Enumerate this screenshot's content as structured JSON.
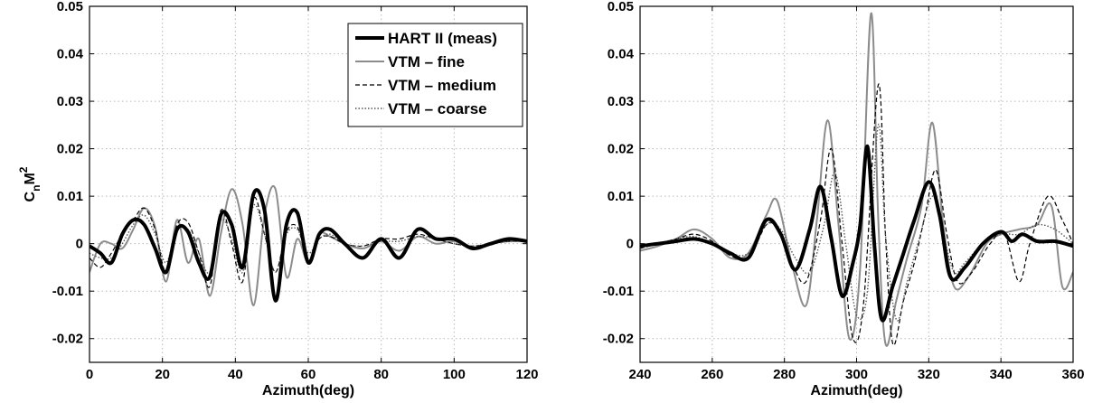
{
  "chart_data": [
    {
      "type": "line",
      "title": "",
      "xlabel": "Azimuth(deg)",
      "ylabel": "C_n M^2",
      "xlim": [
        0,
        120
      ],
      "ylim": [
        -0.025,
        0.05
      ],
      "xticks": [
        0,
        20,
        40,
        60,
        80,
        100,
        120
      ],
      "xtick_labels": [
        "0",
        "20",
        "40",
        "60",
        "80",
        "100",
        "120"
      ],
      "yticks": [
        -0.02,
        -0.01,
        0,
        0.01,
        0.02,
        0.03,
        0.04,
        0.05
      ],
      "ytick_labels": [
        "-0.02",
        "-0.01",
        "0",
        "0.01",
        "0.02",
        "0.03",
        "0.04",
        "0.05"
      ],
      "grid": true,
      "legend": {
        "position": "top-right",
        "entries": [
          "HART II (meas)",
          "VTM – fine",
          "VTM – medium",
          "VTM – coarse"
        ]
      },
      "series": [
        {
          "name": "HART II (meas)",
          "color": "#000000",
          "style": "solid-thick",
          "x": [
            0,
            3,
            6,
            9,
            12,
            15,
            18,
            21,
            24,
            27,
            30,
            33,
            36,
            39,
            42,
            45,
            48,
            51,
            54,
            57,
            60,
            63,
            66,
            70,
            75,
            80,
            85,
            90,
            95,
            100,
            105,
            110,
            115,
            120
          ],
          "y": [
            -0.0005,
            -0.002,
            -0.004,
            0.002,
            0.005,
            0.004,
            -0.001,
            -0.006,
            0.003,
            0.0025,
            -0.004,
            -0.007,
            0.006,
            0.004,
            -0.005,
            0.0105,
            0.007,
            -0.012,
            0.004,
            0.0065,
            -0.004,
            0.002,
            0.003,
            0.0,
            -0.003,
            0.001,
            -0.003,
            0.003,
            0.001,
            0.001,
            -0.001,
            0.0,
            0.001,
            0.0005
          ]
        },
        {
          "name": "VTM – fine",
          "color": "#8c8c8c",
          "style": "solid",
          "x": [
            0,
            3,
            6,
            9,
            12,
            15,
            18,
            21,
            24,
            27,
            30,
            33,
            36,
            39,
            42,
            45,
            48,
            51,
            54,
            57,
            60,
            63,
            66,
            70,
            75,
            80,
            85,
            90,
            95,
            100,
            105,
            110,
            115,
            120
          ],
          "y": [
            -0.006,
            0.0,
            0.0,
            -0.001,
            0.003,
            0.0075,
            0.0035,
            -0.008,
            0.005,
            -0.004,
            0.001,
            -0.011,
            0.002,
            0.0115,
            0.004,
            -0.013,
            0.006,
            0.0115,
            -0.007,
            0.001,
            -0.004,
            0.002,
            0.0015,
            0.0,
            -0.001,
            0.0005,
            -0.0015,
            0.0015,
            0.0,
            0.0005,
            -0.001,
            0.0,
            0.0005,
            0.0005
          ]
        },
        {
          "name": "VTM – medium",
          "color": "#000000",
          "style": "dashed",
          "x": [
            0,
            3,
            6,
            9,
            12,
            15,
            18,
            21,
            24,
            27,
            30,
            33,
            36,
            39,
            42,
            45,
            48,
            51,
            54,
            57,
            60,
            63,
            66,
            70,
            75,
            80,
            85,
            90,
            95,
            100,
            105,
            110,
            115,
            120
          ],
          "y": [
            -0.003,
            -0.005,
            -0.002,
            0.002,
            0.005,
            0.0075,
            0.003,
            -0.006,
            0.004,
            0.0045,
            -0.002,
            -0.009,
            0.007,
            0.0,
            -0.008,
            0.0095,
            0.002,
            -0.006,
            0.0025,
            0.0035,
            -0.0035,
            0.001,
            0.0015,
            0.0,
            -0.0005,
            0.001,
            0.001,
            0.002,
            0.001,
            0.0,
            -0.0005,
            0.0,
            0.0005,
            0.0005
          ]
        },
        {
          "name": "VTM – coarse",
          "color": "#555555",
          "style": "dotted",
          "x": [
            0,
            3,
            6,
            9,
            12,
            15,
            18,
            21,
            24,
            27,
            30,
            33,
            36,
            39,
            42,
            45,
            48,
            51,
            54,
            57,
            60,
            63,
            66,
            70,
            75,
            80,
            85,
            90,
            95,
            100,
            105,
            110,
            115,
            120
          ],
          "y": [
            -0.002,
            -0.003,
            -0.003,
            0.0,
            0.004,
            0.006,
            0.002,
            -0.004,
            0.003,
            0.003,
            -0.002,
            -0.006,
            0.005,
            0.001,
            -0.006,
            0.008,
            0.002,
            -0.006,
            0.002,
            0.003,
            -0.002,
            0.001,
            0.002,
            0.0,
            -0.0005,
            0.0005,
            0.0005,
            0.0015,
            0.001,
            0.0,
            -0.0005,
            0.0,
            0.0005,
            0.0005
          ]
        }
      ]
    },
    {
      "type": "line",
      "title": "",
      "xlabel": "Azimuth(deg)",
      "ylabel": "",
      "xlim": [
        240,
        360
      ],
      "ylim": [
        -0.025,
        0.05
      ],
      "xticks": [
        240,
        260,
        280,
        300,
        320,
        340,
        360
      ],
      "xtick_labels": [
        "240",
        "260",
        "280",
        "300",
        "320",
        "340",
        "360"
      ],
      "yticks": [
        -0.02,
        -0.01,
        0,
        0.01,
        0.02,
        0.03,
        0.04,
        0.05
      ],
      "ytick_labels": [
        "-0.02",
        "-0.01",
        "0",
        "0.01",
        "0.02",
        "0.03",
        "0.04",
        "0.05"
      ],
      "grid": true,
      "series": [
        {
          "name": "HART II (meas)",
          "color": "#000000",
          "style": "solid-thick",
          "x": [
            240,
            245,
            250,
            255,
            260,
            265,
            270,
            275,
            279,
            283,
            287,
            290,
            293,
            296,
            299,
            301,
            303,
            305,
            307,
            310,
            313,
            316,
            320,
            323,
            326,
            330,
            335,
            340,
            343,
            346,
            350,
            355,
            360
          ],
          "y": [
            -0.0005,
            0.0,
            0.0005,
            0.001,
            0.0,
            -0.002,
            -0.003,
            0.005,
            0.002,
            -0.0055,
            0.003,
            0.012,
            0.001,
            -0.011,
            -0.004,
            0.004,
            0.0205,
            -0.001,
            -0.016,
            -0.009,
            -0.002,
            0.005,
            0.013,
            0.006,
            -0.007,
            -0.005,
            0.0,
            0.0025,
            0.0005,
            0.002,
            0.0005,
            0.0005,
            -0.0005
          ]
        },
        {
          "name": "VTM – fine",
          "color": "#8c8c8c",
          "style": "solid",
          "x": [
            240,
            245,
            250,
            255,
            260,
            265,
            270,
            275,
            278,
            282,
            286,
            289,
            292,
            295,
            298,
            301,
            304,
            306,
            308,
            311,
            314,
            318,
            321,
            324,
            327,
            331,
            336,
            340,
            345,
            350,
            354,
            357,
            360
          ],
          "y": [
            -0.0015,
            -0.0005,
            0.001,
            0.003,
            0.001,
            -0.003,
            -0.002,
            0.006,
            0.009,
            -0.004,
            -0.013,
            0.005,
            0.026,
            0.004,
            -0.02,
            -0.005,
            0.0485,
            0.005,
            -0.021,
            -0.012,
            -0.003,
            0.008,
            0.0255,
            0.004,
            -0.009,
            -0.007,
            0.0,
            0.002,
            0.003,
            0.004,
            0.008,
            -0.009,
            -0.006
          ]
        },
        {
          "name": "VTM – medium",
          "color": "#000000",
          "style": "dashed",
          "x": [
            240,
            245,
            250,
            255,
            260,
            265,
            270,
            275,
            278,
            282,
            286,
            290,
            293,
            296,
            299,
            302,
            306,
            308,
            310,
            313,
            316,
            319,
            322,
            325,
            328,
            332,
            337,
            341,
            345,
            348,
            353,
            357,
            360
          ],
          "y": [
            -0.001,
            0.0,
            0.001,
            0.002,
            0.0005,
            -0.0025,
            -0.003,
            0.004,
            0.003,
            -0.004,
            -0.008,
            0.005,
            0.02,
            0.0,
            -0.02,
            -0.012,
            0.0335,
            0.002,
            -0.021,
            -0.012,
            -0.004,
            0.006,
            0.0155,
            0.002,
            -0.008,
            -0.006,
            0.0,
            0.002,
            -0.008,
            0.0,
            0.01,
            0.005,
            0.0
          ]
        },
        {
          "name": "VTM – coarse",
          "color": "#555555",
          "style": "dotted",
          "x": [
            240,
            245,
            250,
            255,
            260,
            265,
            270,
            275,
            279,
            283,
            287,
            291,
            294,
            297,
            300,
            303,
            306,
            308,
            311,
            314,
            317,
            321,
            324,
            327,
            330,
            335,
            340,
            345,
            350,
            355,
            360
          ],
          "y": [
            -0.001,
            0.0,
            0.001,
            0.0015,
            0.0,
            -0.002,
            -0.002,
            0.004,
            0.003,
            -0.003,
            -0.006,
            0.004,
            0.015,
            0.0,
            -0.015,
            -0.01,
            0.025,
            0.002,
            -0.016,
            -0.008,
            0.0,
            0.01,
            0.002,
            -0.006,
            -0.004,
            0.0,
            0.002,
            0.002,
            0.004,
            0.003,
            0.0
          ]
        }
      ]
    }
  ]
}
